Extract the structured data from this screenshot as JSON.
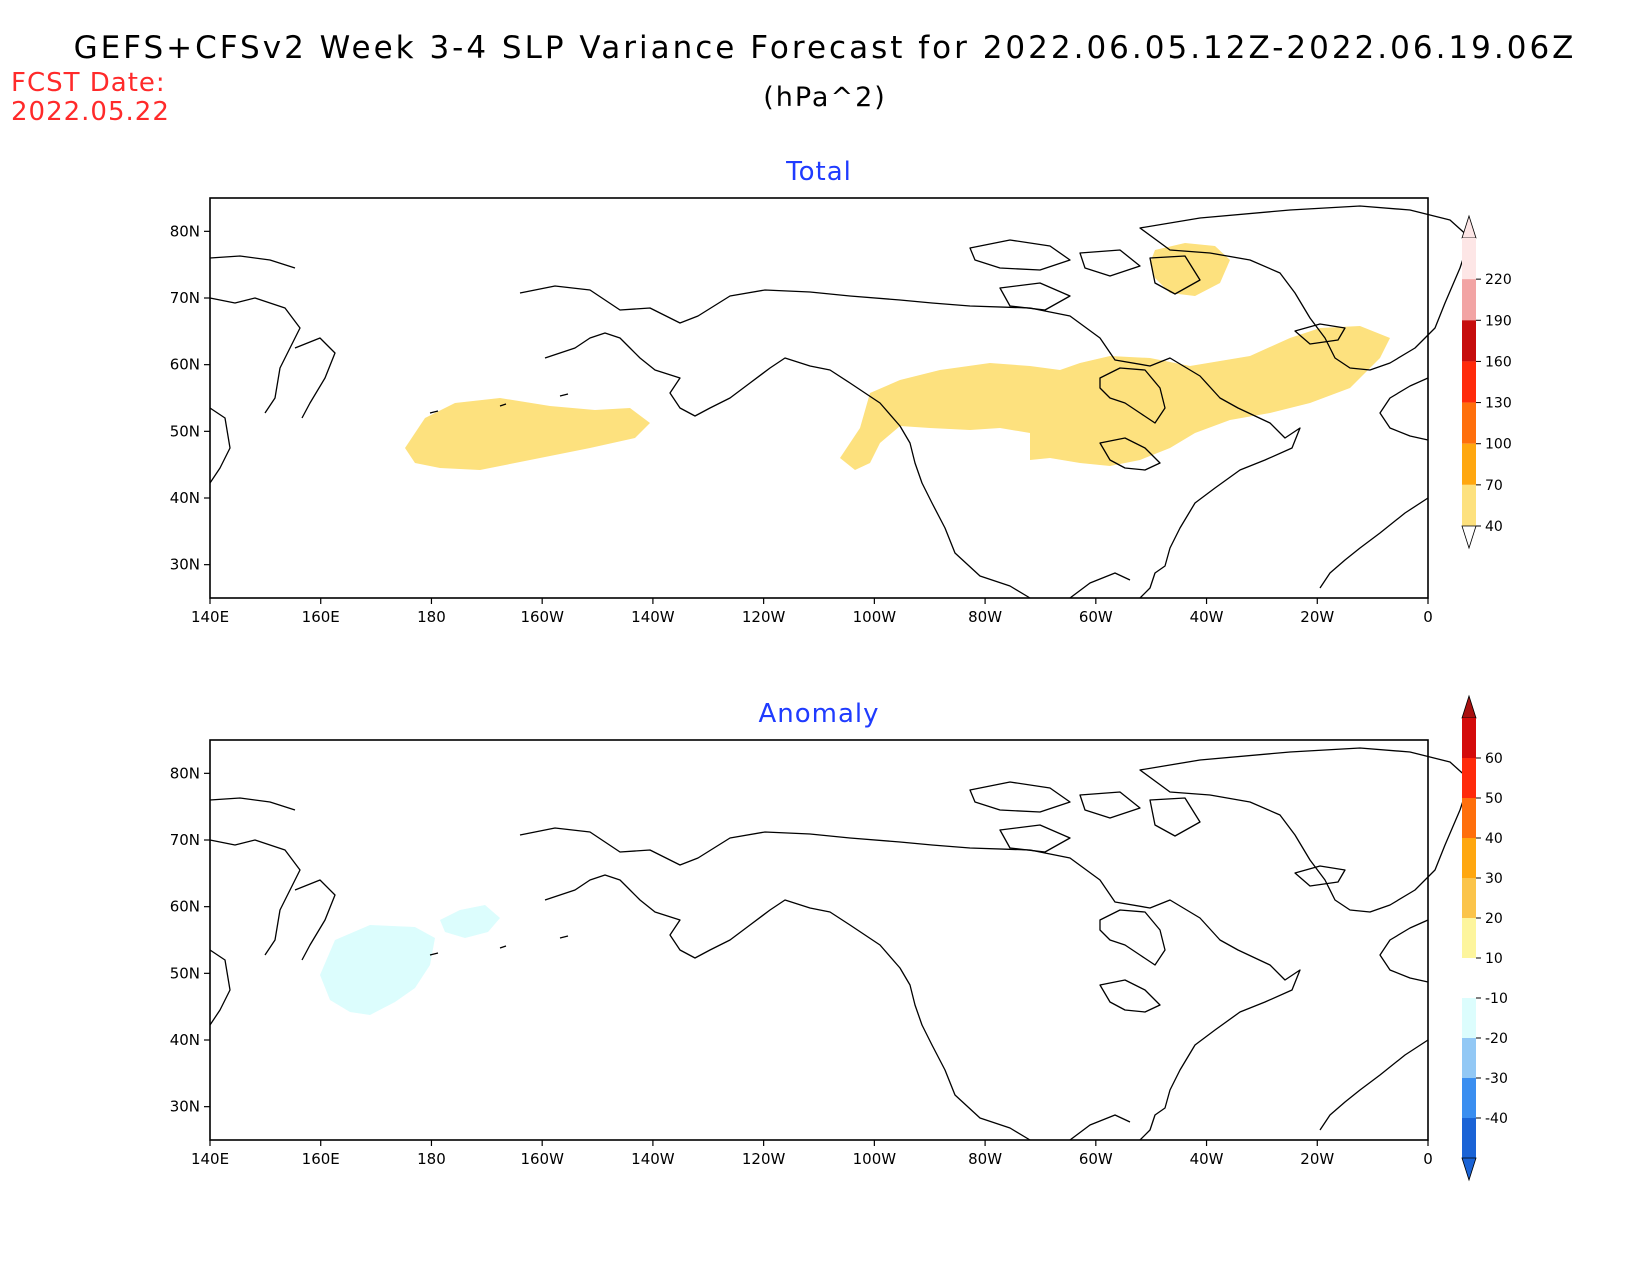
{
  "header": {
    "title": "GEFS+CFSv2 Week 3-4 SLP Variance Forecast for 2022.06.05.12Z-2022.06.19.06Z",
    "units": "(hPa^2)",
    "fcst_label": "FCST Date:",
    "fcst_date": "2022.05.22"
  },
  "map": {
    "lon_ticks": [
      "140E",
      "160E",
      "180",
      "160W",
      "140W",
      "120W",
      "100W",
      "80W",
      "60W",
      "40W",
      "20W",
      "0"
    ],
    "lat_ticks": [
      "80N",
      "70N",
      "60N",
      "50N",
      "40N",
      "30N"
    ],
    "lon_range": [
      140,
      360
    ],
    "lat_range": [
      25,
      85
    ]
  },
  "panels": [
    {
      "title": "Total",
      "colorbar": {
        "levels": [
          "40",
          "70",
          "100",
          "130",
          "160",
          "190",
          "220"
        ],
        "colors": [
          "#fde17e",
          "#ffa70f",
          "#ff6f0c",
          "#ff2a0b",
          "#c60d0d",
          "#f2a4a4",
          "#fde6e6"
        ],
        "tail_low": "#ffffff",
        "tail_high": "#fde6e6"
      },
      "shaded_regions": [
        {
          "label": "North Pacific",
          "color": "#fde17e"
        },
        {
          "label": "Canada / North Atlantic",
          "color": "#fde17e"
        },
        {
          "label": "Greenland",
          "color": "#fde17e"
        }
      ]
    },
    {
      "title": "Anomaly",
      "colorbar": {
        "levels": [
          "60",
          "50",
          "40",
          "30",
          "20",
          "10",
          "-10",
          "-20",
          "-30",
          "-40"
        ],
        "colors": [
          "#d40b0b",
          "#ff2a0b",
          "#ff6f0c",
          "#ffa70f",
          "#fbc44a",
          "#fdf59d",
          "#ffffff",
          "#dcfdfd",
          "#92c8f5",
          "#3a8ef0",
          "#1a63d6"
        ],
        "tail_low": "#1a63d6",
        "tail_high": "#a8100f"
      },
      "shaded_regions": [
        {
          "label": "Aleutians west",
          "color": "#dcfdfd"
        },
        {
          "label": "Aleutians east",
          "color": "#dcfdfd"
        }
      ]
    }
  ]
}
